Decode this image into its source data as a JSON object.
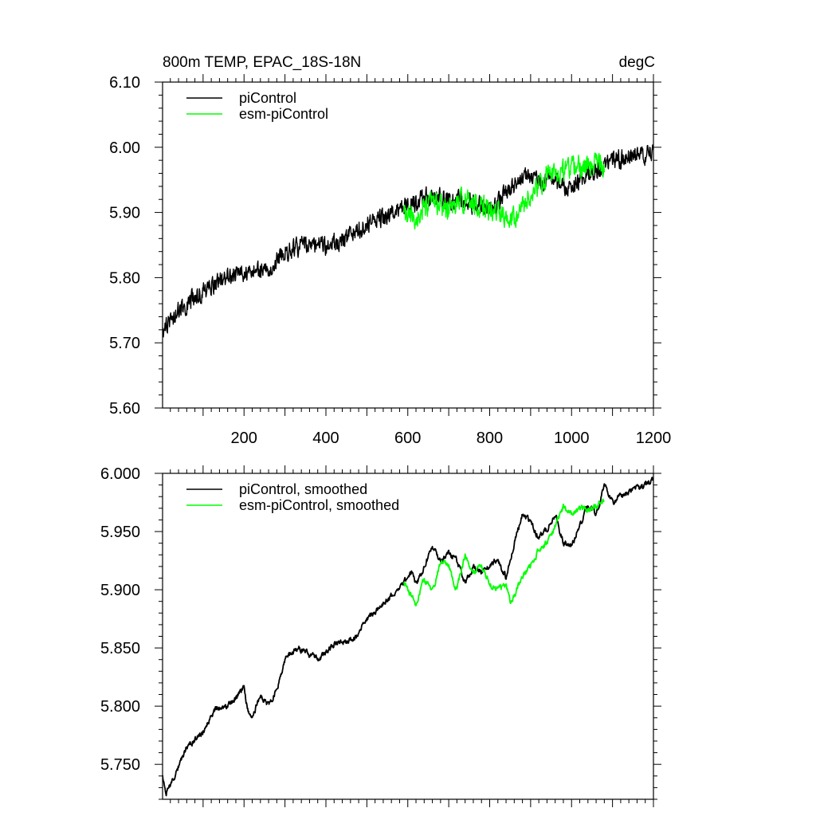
{
  "chart_data": [
    {
      "type": "line",
      "title_left": "800m TEMP, EPAC_18S-18N",
      "title_right": "degC",
      "xlim": [
        1,
        1200
      ],
      "ylim": [
        5.6,
        6.1
      ],
      "xticks": [
        200,
        400,
        600,
        800,
        1000,
        1200
      ],
      "xtick_labels": [
        "200",
        "400",
        "600",
        "800",
        "1000",
        "1200"
      ],
      "yticks": [
        5.6,
        5.7,
        5.8,
        5.9,
        6.0,
        6.1
      ],
      "ytick_labels": [
        "5.60",
        "5.70",
        "5.80",
        "5.90",
        "6.00",
        "6.10"
      ],
      "legend_position": "top-left",
      "grid": false,
      "series": [
        {
          "name": "piControl",
          "color": "#000000",
          "x_range": [
            1,
            1200
          ],
          "anchor_x": [
            1,
            20,
            50,
            100,
            150,
            200,
            250,
            300,
            350,
            400,
            450,
            500,
            550,
            600,
            650,
            700,
            750,
            800,
            850,
            880,
            900,
            950,
            1000,
            1050,
            1100,
            1150,
            1200
          ],
          "anchor_y": [
            5.72,
            5.735,
            5.755,
            5.78,
            5.8,
            5.805,
            5.81,
            5.84,
            5.85,
            5.848,
            5.86,
            5.882,
            5.895,
            5.91,
            5.925,
            5.92,
            5.915,
            5.905,
            5.935,
            5.955,
            5.955,
            5.945,
            5.94,
            5.96,
            5.98,
            5.985,
            5.99
          ],
          "noise_amplitude": 0.018
        },
        {
          "name": "esm-piControl",
          "color": "#00ff00",
          "x_range": [
            590,
            1080
          ],
          "anchor_x": [
            590,
            620,
            660,
            700,
            740,
            780,
            820,
            860,
            900,
            940,
            980,
            1020,
            1060,
            1080
          ],
          "anchor_y": [
            5.895,
            5.89,
            5.915,
            5.905,
            5.92,
            5.91,
            5.9,
            5.895,
            5.925,
            5.955,
            5.965,
            5.97,
            5.975,
            5.975
          ],
          "noise_amplitude": 0.022
        }
      ]
    },
    {
      "type": "line",
      "xlim": [
        1,
        1200
      ],
      "ylim": [
        5.72,
        6.0
      ],
      "xticks": [
        200,
        400,
        600,
        800,
        1000,
        1200
      ],
      "yticks": [
        5.75,
        5.8,
        5.85,
        5.9,
        5.95,
        6.0
      ],
      "ytick_labels": [
        "5.750",
        "5.800",
        "5.850",
        "5.900",
        "5.950",
        "6.000"
      ],
      "legend_position": "top-left",
      "grid": false,
      "series": [
        {
          "name": "piControl, smoothed",
          "color": "#000000",
          "x_range": [
            1,
            1200
          ],
          "anchor_x": [
            1,
            10,
            30,
            60,
            100,
            130,
            160,
            180,
            200,
            210,
            220,
            240,
            260,
            280,
            300,
            330,
            380,
            420,
            440,
            470,
            500,
            540,
            580,
            610,
            620,
            640,
            660,
            680,
            700,
            720,
            740,
            760,
            780,
            800,
            820,
            840,
            860,
            880,
            900,
            920,
            940,
            960,
            980,
            1000,
            1040,
            1060,
            1080,
            1100,
            1120,
            1150,
            1180,
            1200
          ],
          "anchor_y": [
            5.74,
            5.725,
            5.74,
            5.765,
            5.778,
            5.797,
            5.8,
            5.808,
            5.815,
            5.795,
            5.79,
            5.81,
            5.8,
            5.815,
            5.84,
            5.85,
            5.84,
            5.853,
            5.855,
            5.858,
            5.875,
            5.888,
            5.9,
            5.915,
            5.905,
            5.92,
            5.937,
            5.925,
            5.93,
            5.925,
            5.905,
            5.92,
            5.915,
            5.92,
            5.925,
            5.91,
            5.94,
            5.965,
            5.958,
            5.945,
            5.952,
            5.965,
            5.94,
            5.938,
            5.972,
            5.965,
            5.99,
            5.975,
            5.98,
            5.985,
            5.99,
            5.995
          ],
          "noise_amplitude": 0.005
        },
        {
          "name": "esm-piControl, smoothed",
          "color": "#00ff00",
          "x_range": [
            590,
            1080
          ],
          "anchor_x": [
            590,
            600,
            620,
            640,
            660,
            680,
            700,
            720,
            740,
            760,
            780,
            800,
            820,
            840,
            850,
            860,
            880,
            900,
            920,
            940,
            960,
            980,
            1000,
            1020,
            1040,
            1060,
            1080
          ],
          "anchor_y": [
            5.905,
            5.9,
            5.888,
            5.91,
            5.898,
            5.925,
            5.92,
            5.9,
            5.93,
            5.915,
            5.92,
            5.905,
            5.9,
            5.905,
            5.89,
            5.895,
            5.912,
            5.92,
            5.935,
            5.94,
            5.955,
            5.97,
            5.965,
            5.97,
            5.968,
            5.972,
            5.978
          ],
          "noise_amplitude": 0.005
        }
      ]
    }
  ]
}
